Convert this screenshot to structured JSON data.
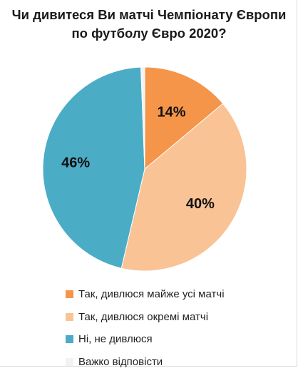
{
  "chart_data": {
    "type": "pie",
    "title_line1": "Чи дивитеся Ви матчі Чемпіонату Європи",
    "title_line2": "по футболу Євро 2020?",
    "slices": [
      {
        "name": "Так, дивлюся майже усі матчі",
        "value": 14,
        "label": "14%",
        "color": "#f5954a"
      },
      {
        "name": "Так, дивлюся окремі матчі",
        "value": 40,
        "label": "40%",
        "color": "#f9c396"
      },
      {
        "name": "Ні, не дивлюся",
        "value": 46,
        "label": "46%",
        "color": "#4bacc6"
      },
      {
        "name": "Важко відповісти",
        "value": 0.6,
        "label": "",
        "color": "#f2f2f2"
      }
    ],
    "legend_position": "bottom"
  }
}
